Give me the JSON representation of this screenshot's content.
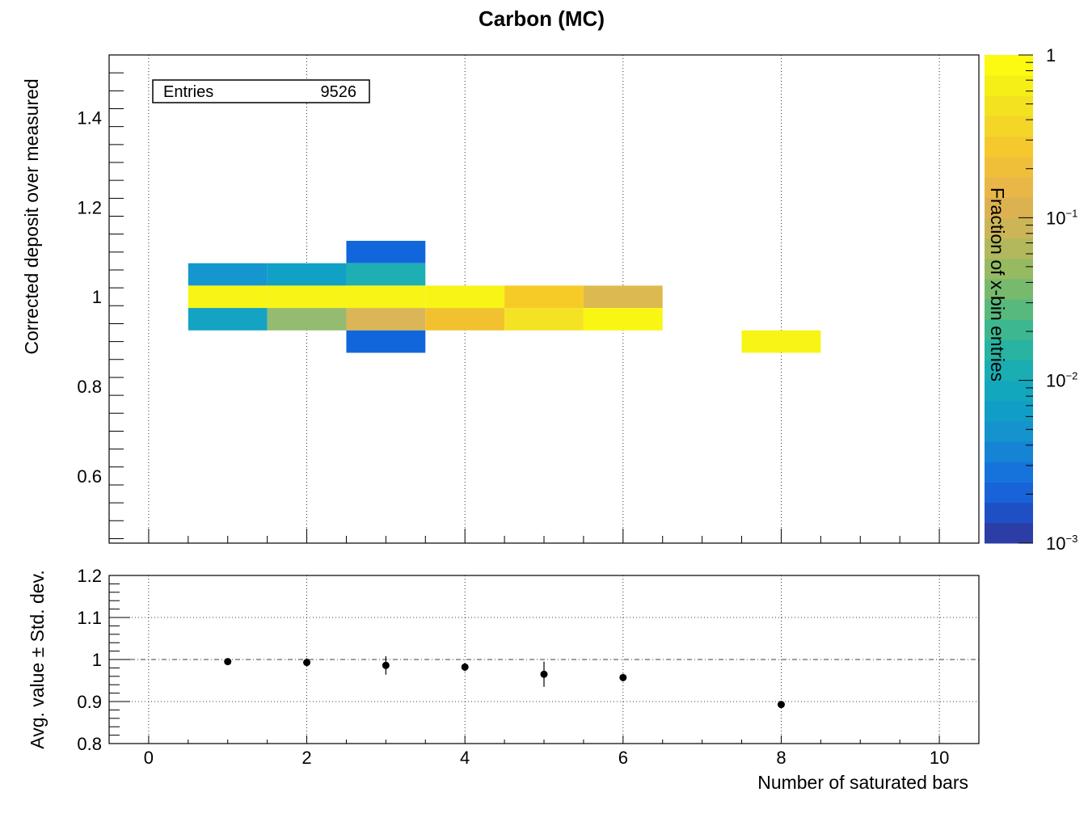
{
  "chart_data": [
    {
      "type": "heatmap",
      "title": "Carbon (MC)",
      "ylabel": "Corrected deposit over measured",
      "xlabel": "",
      "xlim": [
        -0.5,
        10.5
      ],
      "ylim": [
        0.45,
        1.54
      ],
      "x_ticks": [
        "0",
        "2",
        "4",
        "6",
        "8",
        "10"
      ],
      "y_ticks": [
        "0.6",
        "0.8",
        "1",
        "1.2",
        "1.4"
      ],
      "grid": true,
      "stats_box": {
        "label": "Entries",
        "value": "9526"
      },
      "colorbar": {
        "label": "Fraction of x-bin entries",
        "scale": "log",
        "range": [
          0.001,
          1
        ],
        "tick_labels": [
          {
            "base": "1",
            "exp": ""
          },
          {
            "base": "10",
            "exp": "−1"
          },
          {
            "base": "10",
            "exp": "−2"
          },
          {
            "base": "10",
            "exp": "−3"
          }
        ],
        "palette": [
          "#2c3da5",
          "#1f4fc4",
          "#1863d8",
          "#1673dc",
          "#1584d5",
          "#1493cc",
          "#119ec6",
          "#13a7be",
          "#1aadb2",
          "#28b3a2",
          "#3db790",
          "#58b97d",
          "#78ba6d",
          "#96ba61",
          "#b2b85b",
          "#cbb557",
          "#dcb251",
          "#e9b648",
          "#f0bf3a",
          "#f5c92e",
          "#f4d628",
          "#f3e21f",
          "#f6ef17",
          "#fbfa10"
        ]
      },
      "cells": [
        {
          "x": 1,
          "y": 1.05,
          "color": "#1596cf"
        },
        {
          "x": 1,
          "y": 1.0,
          "color": "#f7f416"
        },
        {
          "x": 1,
          "y": 0.95,
          "color": "#14a3c3"
        },
        {
          "x": 2,
          "y": 1.05,
          "color": "#11a0c6"
        },
        {
          "x": 2,
          "y": 1.0,
          "color": "#f7f416"
        },
        {
          "x": 2,
          "y": 0.95,
          "color": "#94bb70"
        },
        {
          "x": 3,
          "y": 1.1,
          "color": "#1266dc"
        },
        {
          "x": 3,
          "y": 1.05,
          "color": "#1eafb5"
        },
        {
          "x": 3,
          "y": 1.0,
          "color": "#f7f416"
        },
        {
          "x": 3,
          "y": 0.95,
          "color": "#dab658"
        },
        {
          "x": 3,
          "y": 0.9,
          "color": "#1266dc"
        },
        {
          "x": 4,
          "y": 1.0,
          "color": "#f7f416"
        },
        {
          "x": 4,
          "y": 0.95,
          "color": "#f2c12f"
        },
        {
          "x": 5,
          "y": 1.0,
          "color": "#f7cb27"
        },
        {
          "x": 5,
          "y": 0.95,
          "color": "#f4e224"
        },
        {
          "x": 6,
          "y": 1.0,
          "color": "#ddba4f"
        },
        {
          "x": 6,
          "y": 0.95,
          "color": "#f9f614"
        },
        {
          "x": 8,
          "y": 0.9,
          "color": "#f7f416"
        }
      ]
    },
    {
      "type": "scatter",
      "title": "",
      "xlabel": "Number of saturated bars",
      "ylabel": "Avg. value ± Std. dev.",
      "xlim": [
        -0.5,
        10.5
      ],
      "ylim": [
        0.8,
        1.2
      ],
      "x_ticks": [
        "0",
        "2",
        "4",
        "6",
        "8",
        "10"
      ],
      "y_ticks": [
        "0.8",
        "0.9",
        "1",
        "1.1",
        "1.2"
      ],
      "grid": true,
      "reference_line": 1,
      "points": [
        {
          "x": 1,
          "y": 0.995,
          "err": 0.004
        },
        {
          "x": 2,
          "y": 0.993,
          "err": 0.01
        },
        {
          "x": 3,
          "y": 0.986,
          "err": 0.022
        },
        {
          "x": 4,
          "y": 0.982,
          "err": 0.01
        },
        {
          "x": 5,
          "y": 0.965,
          "err": 0.03
        },
        {
          "x": 6,
          "y": 0.957,
          "err": 0.009
        },
        {
          "x": 8,
          "y": 0.893,
          "err": 0.003
        }
      ]
    }
  ]
}
